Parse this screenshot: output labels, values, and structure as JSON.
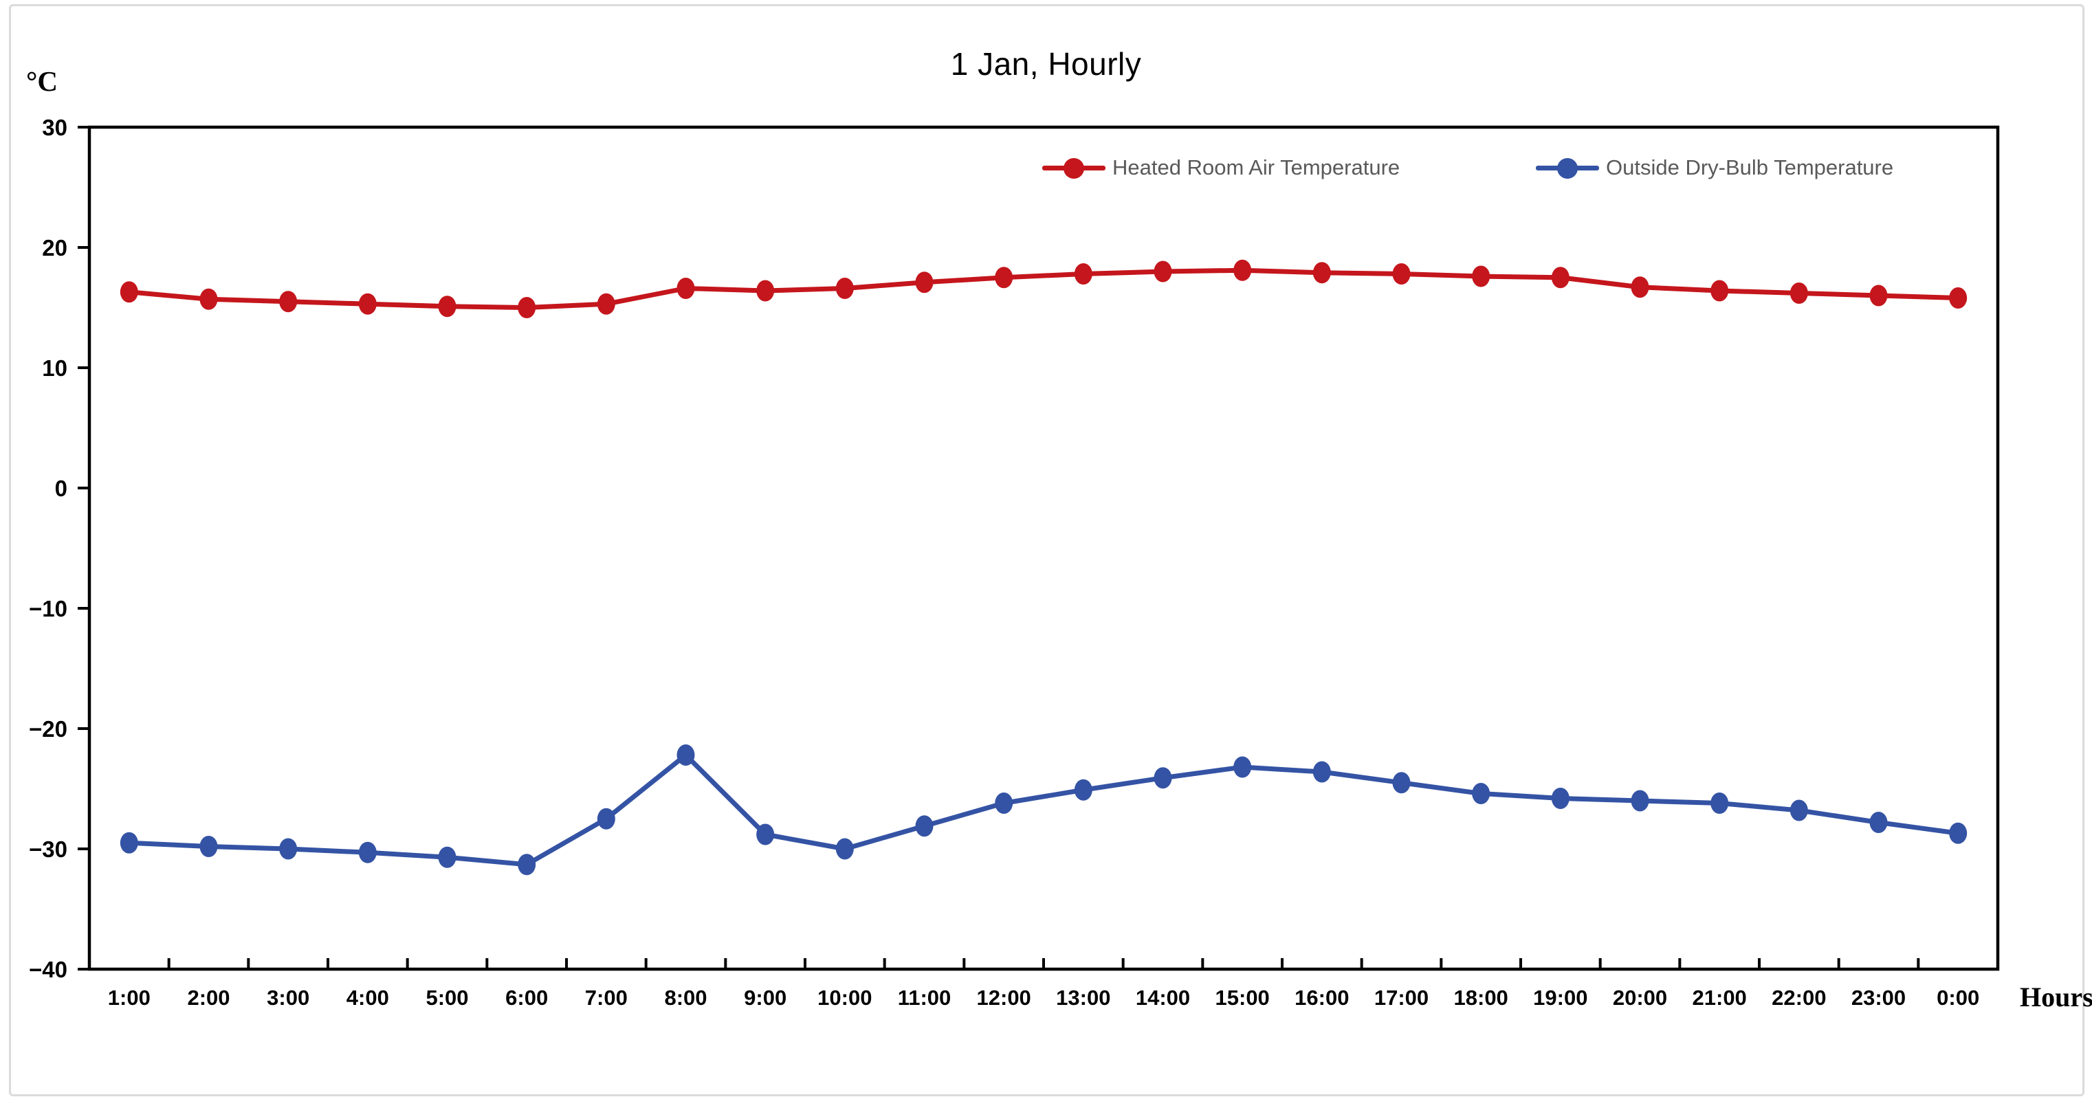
{
  "colors": {
    "heated_series": "#c4161c",
    "outside_series": "#3453a4",
    "legend_text": "#595959",
    "axis": "#000000",
    "tick_label": "#000000",
    "card_border": "#dbdbdb"
  },
  "chart_data": {
    "type": "line",
    "title": "1 Jan, Hourly",
    "y_axis_label": "°C",
    "x_axis_label": "Hours",
    "categories": [
      "1:00",
      "2:00",
      "3:00",
      "4:00",
      "5:00",
      "6:00",
      "7:00",
      "8:00",
      "9:00",
      "10:00",
      "11:00",
      "12:00",
      "13:00",
      "14:00",
      "15:00",
      "16:00",
      "17:00",
      "18:00",
      "19:00",
      "20:00",
      "21:00",
      "22:00",
      "23:00",
      "0:00"
    ],
    "series": [
      {
        "name": "Heated Room Air Temperature",
        "color": "#c4161c",
        "values": [
          16.3,
          15.7,
          15.5,
          15.3,
          15.1,
          15.0,
          15.3,
          16.6,
          16.4,
          16.6,
          17.1,
          17.5,
          17.8,
          18.0,
          18.1,
          17.9,
          17.8,
          17.6,
          17.5,
          16.7,
          16.4,
          16.2,
          16.0,
          15.8
        ]
      },
      {
        "name": "Outside Dry-Bulb Temperature",
        "color": "#3453a4",
        "values": [
          -29.5,
          -29.8,
          -30.0,
          -30.3,
          -30.7,
          -31.3,
          -27.5,
          -22.2,
          -28.8,
          -30.0,
          -28.1,
          -26.2,
          -25.1,
          -24.1,
          -23.2,
          -23.6,
          -24.5,
          -25.4,
          -25.8,
          -26.0,
          -26.2,
          -26.8,
          -27.8,
          -28.7
        ]
      }
    ],
    "y_ticks": [
      30,
      20,
      10,
      0,
      -10,
      -20,
      -30,
      -40
    ],
    "ylim": [
      -40,
      30
    ],
    "grid": false,
    "legend_position": "top-inside"
  }
}
